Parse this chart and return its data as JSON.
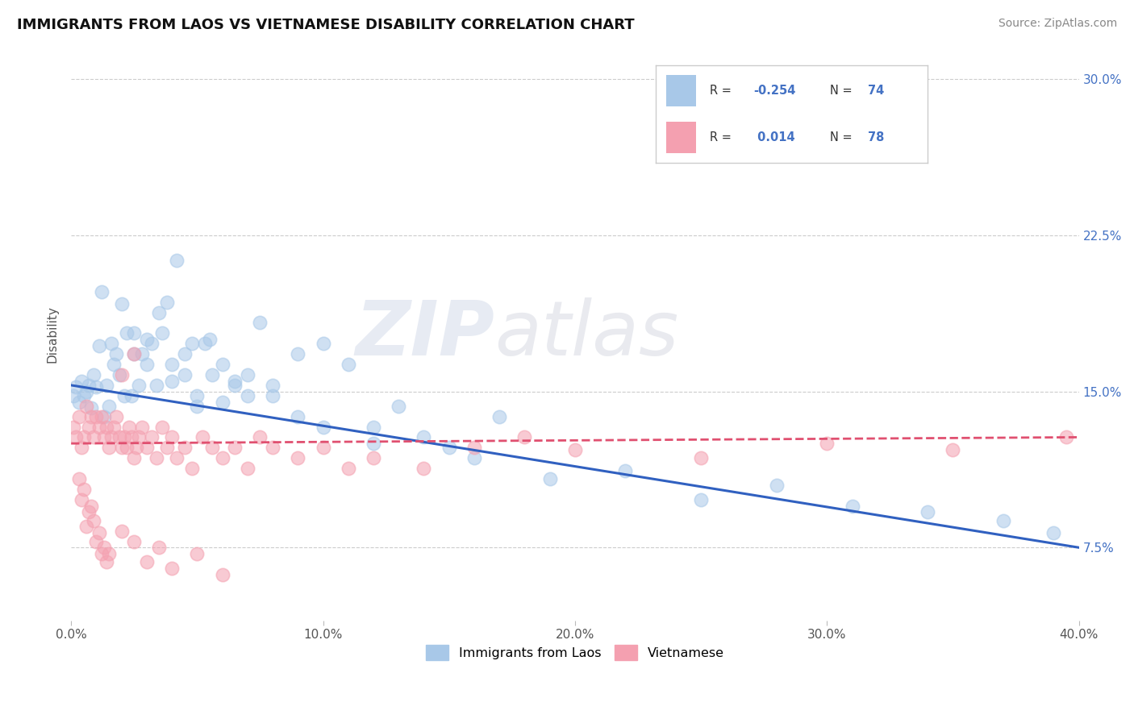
{
  "title": "IMMIGRANTS FROM LAOS VS VIETNAMESE DISABILITY CORRELATION CHART",
  "source": "Source: ZipAtlas.com",
  "ylabel": "Disability",
  "xlim": [
    0.0,
    0.4
  ],
  "ylim": [
    0.04,
    0.315
  ],
  "xticks": [
    0.0,
    0.1,
    0.2,
    0.3,
    0.4
  ],
  "xtick_labels": [
    "0.0%",
    "10.0%",
    "20.0%",
    "30.0%",
    "40.0%"
  ],
  "yticks": [
    0.075,
    0.15,
    0.225,
    0.3
  ],
  "ytick_labels": [
    "7.5%",
    "15.0%",
    "22.5%",
    "30.0%"
  ],
  "blue_color": "#a8c8e8",
  "pink_color": "#f4a0b0",
  "blue_line_color": "#3060c0",
  "pink_line_color": "#e05070",
  "legend_label_blue": "Immigrants from Laos",
  "legend_label_pink": "Vietnamese",
  "watermark_zip": "ZIP",
  "watermark_atlas": "atlas",
  "background_color": "#ffffff",
  "blue_trend_x0": 0.0,
  "blue_trend_y0": 0.153,
  "blue_trend_x1": 0.4,
  "blue_trend_y1": 0.075,
  "pink_trend_x0": 0.0,
  "pink_trend_y0": 0.125,
  "pink_trend_x1": 0.4,
  "pink_trend_y1": 0.128,
  "blue_x": [
    0.001,
    0.002,
    0.003,
    0.004,
    0.005,
    0.006,
    0.007,
    0.008,
    0.009,
    0.01,
    0.011,
    0.012,
    0.013,
    0.014,
    0.015,
    0.016,
    0.017,
    0.018,
    0.019,
    0.02,
    0.021,
    0.022,
    0.024,
    0.025,
    0.027,
    0.028,
    0.03,
    0.032,
    0.034,
    0.036,
    0.038,
    0.04,
    0.042,
    0.045,
    0.048,
    0.05,
    0.053,
    0.056,
    0.06,
    0.065,
    0.07,
    0.075,
    0.08,
    0.09,
    0.1,
    0.11,
    0.12,
    0.13,
    0.15,
    0.17,
    0.025,
    0.03,
    0.035,
    0.04,
    0.045,
    0.05,
    0.055,
    0.06,
    0.065,
    0.07,
    0.08,
    0.09,
    0.1,
    0.12,
    0.14,
    0.16,
    0.19,
    0.22,
    0.25,
    0.28,
    0.31,
    0.34,
    0.37,
    0.39
  ],
  "blue_y": [
    0.148,
    0.152,
    0.145,
    0.155,
    0.148,
    0.15,
    0.153,
    0.142,
    0.158,
    0.152,
    0.172,
    0.198,
    0.138,
    0.153,
    0.143,
    0.173,
    0.163,
    0.168,
    0.158,
    0.192,
    0.148,
    0.178,
    0.148,
    0.178,
    0.153,
    0.168,
    0.163,
    0.173,
    0.153,
    0.178,
    0.193,
    0.163,
    0.213,
    0.158,
    0.173,
    0.143,
    0.173,
    0.158,
    0.163,
    0.153,
    0.148,
    0.183,
    0.153,
    0.168,
    0.173,
    0.163,
    0.133,
    0.143,
    0.123,
    0.138,
    0.168,
    0.175,
    0.188,
    0.155,
    0.168,
    0.148,
    0.175,
    0.145,
    0.155,
    0.158,
    0.148,
    0.138,
    0.133,
    0.125,
    0.128,
    0.118,
    0.108,
    0.112,
    0.098,
    0.105,
    0.095,
    0.092,
    0.088,
    0.082
  ],
  "pink_x": [
    0.001,
    0.002,
    0.003,
    0.004,
    0.005,
    0.006,
    0.007,
    0.008,
    0.009,
    0.01,
    0.011,
    0.012,
    0.013,
    0.014,
    0.015,
    0.016,
    0.017,
    0.018,
    0.019,
    0.02,
    0.021,
    0.022,
    0.023,
    0.024,
    0.025,
    0.026,
    0.027,
    0.028,
    0.03,
    0.032,
    0.034,
    0.036,
    0.038,
    0.04,
    0.042,
    0.045,
    0.048,
    0.052,
    0.056,
    0.06,
    0.065,
    0.07,
    0.075,
    0.08,
    0.09,
    0.1,
    0.11,
    0.12,
    0.14,
    0.16,
    0.003,
    0.004,
    0.005,
    0.006,
    0.007,
    0.008,
    0.009,
    0.01,
    0.011,
    0.012,
    0.013,
    0.014,
    0.015,
    0.02,
    0.025,
    0.03,
    0.035,
    0.04,
    0.05,
    0.06,
    0.02,
    0.025,
    0.18,
    0.2,
    0.25,
    0.3,
    0.35,
    0.395
  ],
  "pink_y": [
    0.133,
    0.128,
    0.138,
    0.123,
    0.128,
    0.143,
    0.133,
    0.138,
    0.128,
    0.138,
    0.133,
    0.138,
    0.128,
    0.133,
    0.123,
    0.128,
    0.133,
    0.138,
    0.128,
    0.123,
    0.128,
    0.123,
    0.133,
    0.128,
    0.118,
    0.123,
    0.128,
    0.133,
    0.123,
    0.128,
    0.118,
    0.133,
    0.123,
    0.128,
    0.118,
    0.123,
    0.113,
    0.128,
    0.123,
    0.118,
    0.123,
    0.113,
    0.128,
    0.123,
    0.118,
    0.123,
    0.113,
    0.118,
    0.113,
    0.123,
    0.108,
    0.098,
    0.103,
    0.085,
    0.092,
    0.095,
    0.088,
    0.078,
    0.082,
    0.072,
    0.075,
    0.068,
    0.072,
    0.083,
    0.078,
    0.068,
    0.075,
    0.065,
    0.072,
    0.062,
    0.158,
    0.168,
    0.128,
    0.122,
    0.118,
    0.125,
    0.122,
    0.128
  ]
}
